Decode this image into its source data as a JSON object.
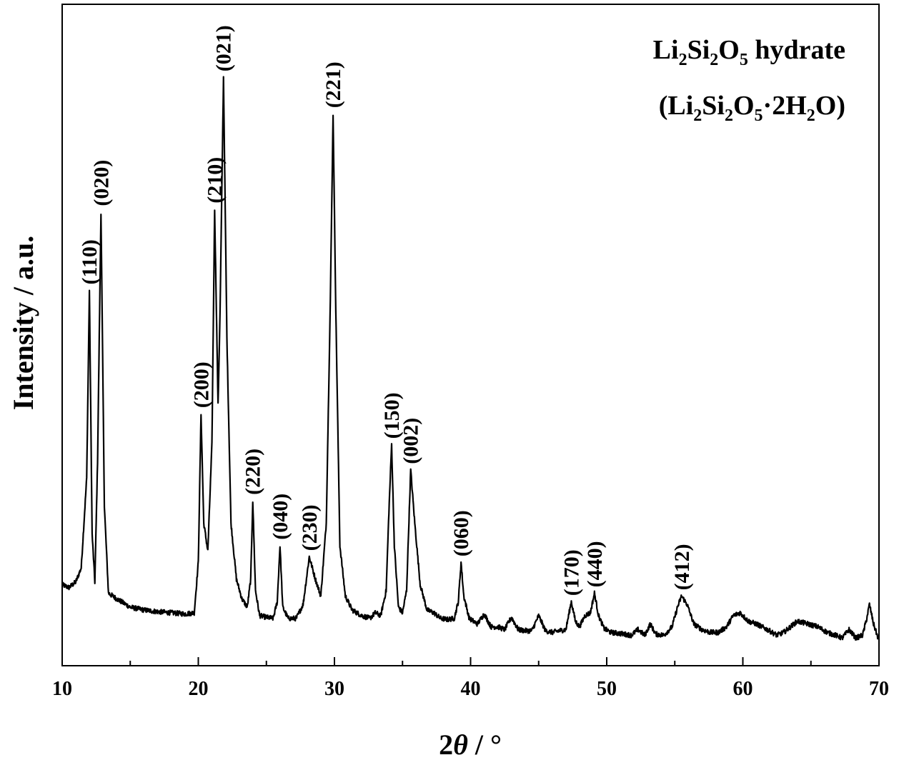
{
  "chart_data": {
    "type": "line",
    "title": "",
    "annotation_lines": [
      {
        "parts": [
          [
            "Li",
            "n"
          ],
          [
            "2",
            "s"
          ],
          [
            "Si",
            "n"
          ],
          [
            "2",
            "s"
          ],
          [
            "O",
            "n"
          ],
          [
            "5",
            "s"
          ],
          [
            " hydrate",
            "n"
          ]
        ]
      },
      {
        "parts": [
          [
            "(Li",
            "n"
          ],
          [
            "2",
            "s"
          ],
          [
            "Si",
            "n"
          ],
          [
            "2",
            "s"
          ],
          [
            "O",
            "n"
          ],
          [
            "5",
            "s"
          ],
          [
            "·2H",
            "n"
          ],
          [
            "2",
            "s"
          ],
          [
            "O)",
            "n"
          ]
        ]
      }
    ],
    "xlabel": "2θ / °",
    "xlabel_symbol": "2",
    "xlabel_theta": "θ",
    "xlabel_unit": " / °",
    "ylabel": "Intensity / a.u.",
    "xlim": [
      10,
      70
    ],
    "ylim": [
      0,
      100
    ],
    "xticks": [
      10,
      20,
      30,
      40,
      50,
      60,
      70
    ],
    "yticks_shown": false,
    "grid": false,
    "line_color": "#000000",
    "peaks": [
      {
        "label": "(110)",
        "x": 12.0,
        "y": 63.5
      },
      {
        "label": "(020)",
        "x": 12.85,
        "y": 77.5
      },
      {
        "label": "(200)",
        "x": 20.2,
        "y": 41.5
      },
      {
        "label": "(210)",
        "x": 21.2,
        "y": 78.0
      },
      {
        "label": "(021)",
        "x": 21.85,
        "y": 101.5
      },
      {
        "label": "(220)",
        "x": 24.0,
        "y": 26.0
      },
      {
        "label": "(040)",
        "x": 26.0,
        "y": 18.0
      },
      {
        "label": "(230)",
        "x": 28.15,
        "y": 16.0
      },
      {
        "label": "(221)",
        "x": 29.9,
        "y": 95.0
      },
      {
        "label": "(150)",
        "x": 34.2,
        "y": 36.0
      },
      {
        "label": "(002)",
        "x": 35.6,
        "y": 31.5
      },
      {
        "label": "(060)",
        "x": 39.3,
        "y": 15.0
      },
      {
        "label": "(170)",
        "x": 47.4,
        "y": 8.0
      },
      {
        "label": "(440)",
        "x": 49.1,
        "y": 9.5
      },
      {
        "label": "(412)",
        "x": 55.5,
        "y": 9.0
      }
    ],
    "series": [
      {
        "values_x": [
          10.0,
          10.5,
          11.0,
          11.4,
          11.8,
          12.0,
          12.2,
          12.4,
          12.6,
          12.85,
          13.1,
          13.4,
          14.0,
          15.0,
          16.0,
          17.0,
          18.0,
          19.0,
          19.7,
          20.0,
          20.2,
          20.4,
          20.7,
          21.0,
          21.2,
          21.45,
          21.6,
          21.85,
          22.1,
          22.4,
          22.8,
          23.2,
          23.6,
          23.85,
          24.0,
          24.2,
          24.5,
          25.0,
          25.5,
          25.8,
          26.0,
          26.2,
          26.6,
          27.2,
          27.7,
          28.15,
          28.6,
          29.0,
          29.4,
          29.7,
          29.9,
          30.1,
          30.4,
          30.8,
          31.3,
          32.0,
          32.6,
          33.0,
          33.4,
          33.8,
          34.0,
          34.2,
          34.4,
          34.7,
          35.0,
          35.3,
          35.6,
          35.9,
          36.3,
          36.8,
          37.3,
          37.8,
          38.3,
          38.8,
          39.1,
          39.3,
          39.5,
          39.9,
          40.5,
          41.0,
          41.5,
          42.0,
          42.5,
          43.0,
          43.5,
          44.0,
          44.5,
          45.0,
          45.5,
          46.0,
          46.5,
          47.0,
          47.4,
          47.7,
          48.0,
          48.4,
          48.8,
          49.1,
          49.4,
          49.8,
          50.3,
          51.0,
          51.8,
          52.3,
          52.8,
          53.2,
          53.6,
          54.2,
          54.8,
          55.2,
          55.5,
          55.9,
          56.4,
          57.0,
          57.6,
          58.2,
          58.8,
          59.3,
          59.8,
          60.4,
          61.0,
          61.8,
          62.5,
          63.0,
          63.5,
          64.0,
          64.8,
          65.5,
          66.2,
          66.8,
          67.3,
          67.8,
          68.3,
          68.8,
          69.1,
          69.3,
          69.6,
          70.0
        ],
        "values_y": [
          11.0,
          10.5,
          11.5,
          14.0,
          30.0,
          63.5,
          20.0,
          11.5,
          33.0,
          77.5,
          25.0,
          9.5,
          8.5,
          7.0,
          6.5,
          6.2,
          6.0,
          5.8,
          6.0,
          15.0,
          41.5,
          22.0,
          17.0,
          36.0,
          78.0,
          43.0,
          60.0,
          101.5,
          55.0,
          22.0,
          12.0,
          8.5,
          7.0,
          12.0,
          26.0,
          10.0,
          5.5,
          5.2,
          5.0,
          8.0,
          18.0,
          7.0,
          5.0,
          5.0,
          7.5,
          16.0,
          12.0,
          9.0,
          22.0,
          62.0,
          95.0,
          60.0,
          18.0,
          9.0,
          6.5,
          5.5,
          5.0,
          6.0,
          5.5,
          10.0,
          24.0,
          36.0,
          18.0,
          7.0,
          6.0,
          10.0,
          31.5,
          22.0,
          11.0,
          6.5,
          6.0,
          5.0,
          4.8,
          5.0,
          8.0,
          15.0,
          9.0,
          5.0,
          4.0,
          5.8,
          3.5,
          3.5,
          3.0,
          5.2,
          3.0,
          2.8,
          2.8,
          5.5,
          2.8,
          2.5,
          2.8,
          3.0,
          8.0,
          4.5,
          3.5,
          5.5,
          6.0,
          9.5,
          5.5,
          3.2,
          2.5,
          2.3,
          2.0,
          3.0,
          2.0,
          4.0,
          2.2,
          2.0,
          3.5,
          7.0,
          9.0,
          7.5,
          4.0,
          3.0,
          2.5,
          2.5,
          3.5,
          5.5,
          6.0,
          4.5,
          4.0,
          3.0,
          2.0,
          2.5,
          3.5,
          4.5,
          4.0,
          3.5,
          2.5,
          2.0,
          1.5,
          3.0,
          1.5,
          2.0,
          5.0,
          7.5,
          4.0,
          1.0
        ]
      }
    ]
  }
}
